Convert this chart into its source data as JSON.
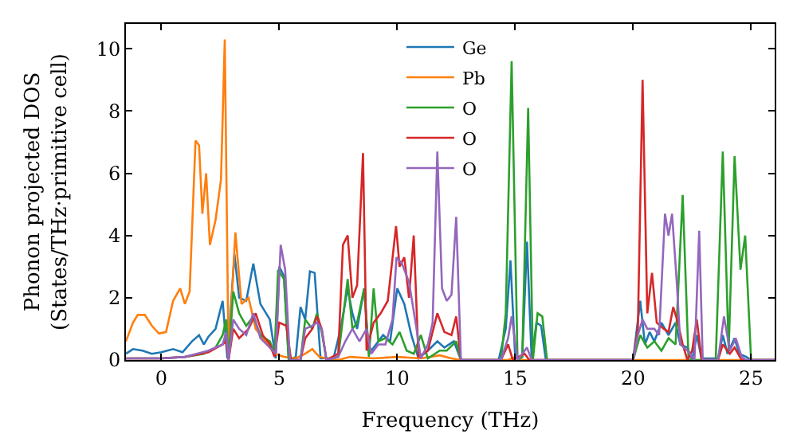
{
  "chart_data": {
    "type": "line",
    "xlabel": "Frequency (THz)",
    "ylabel": "Phonon projected DOS\n(States/THz·primitive cell)",
    "xlim": [
      -1.5,
      26
    ],
    "ylim": [
      0,
      10.8
    ],
    "xticks": [
      0,
      5,
      10,
      15,
      20,
      25
    ],
    "yticks": [
      0,
      2,
      4,
      6,
      8,
      10
    ],
    "grid": false,
    "legend": "top",
    "marker": "none",
    "line_style": "solid",
    "series": [
      {
        "name": "Ge",
        "color": "#1f77b4",
        "x": [
          -1.5,
          -1.2,
          -0.8,
          -0.4,
          0,
          0.5,
          0.9,
          1.3,
          1.6,
          1.8,
          2.0,
          2.3,
          2.6,
          2.8,
          3.1,
          3.3,
          3.6,
          3.9,
          4.2,
          4.6,
          4.85,
          5.0,
          5.2,
          5.4,
          5.7,
          5.9,
          6.1,
          6.3,
          6.5,
          6.75,
          7.3,
          7.6,
          7.9,
          8.1,
          8.3,
          8.6,
          8.8,
          9.1,
          9.4,
          9.7,
          10.0,
          10.3,
          10.6,
          10.9,
          11.3,
          11.7,
          12.0,
          12.4,
          12.7,
          14.3,
          14.6,
          14.8,
          15.0,
          15.3,
          15.5,
          15.7,
          15.9,
          16.1,
          16.3,
          20.0,
          20.3,
          20.5,
          20.7,
          20.9,
          21.2,
          21.5,
          21.8,
          22.0,
          22.3,
          22.5,
          22.7,
          22.9,
          23.6,
          23.8,
          24.0,
          24.3,
          24.5,
          24.8,
          25.0,
          26
        ],
        "values": [
          0.2,
          0.35,
          0.3,
          0.2,
          0.25,
          0.35,
          0.25,
          0.6,
          0.8,
          0.5,
          0.75,
          1.0,
          1.9,
          0.05,
          3.4,
          2.0,
          1.9,
          3.1,
          1.8,
          1.3,
          0.05,
          3.0,
          2.7,
          0.0,
          0.1,
          1.7,
          1.3,
          2.85,
          2.8,
          0.05,
          0.05,
          1.0,
          2.3,
          1.5,
          1.0,
          2.3,
          0.2,
          0.5,
          0.8,
          0.6,
          2.3,
          1.8,
          0.8,
          0.05,
          0.3,
          0.6,
          0.4,
          0.6,
          0.0,
          0.0,
          1.0,
          3.2,
          0.1,
          0.1,
          3.8,
          0.0,
          1.2,
          1.1,
          0.0,
          0.0,
          1.9,
          0.5,
          0.9,
          0.6,
          1.2,
          0.8,
          1.2,
          0.5,
          0.4,
          0.0,
          0.8,
          0.05,
          0.05,
          0.8,
          0.2,
          0.7,
          0.2,
          0.1,
          0.0,
          0.0
        ]
      },
      {
        "name": "Pb",
        "color": "#ff7f0e",
        "x": [
          -1.5,
          -1.2,
          -1.0,
          -0.7,
          -0.4,
          -0.1,
          0.2,
          0.5,
          0.8,
          1.0,
          1.2,
          1.45,
          1.6,
          1.74,
          1.9,
          2.06,
          2.3,
          2.53,
          2.69,
          2.85,
          3.14,
          3.4,
          3.7,
          4.0,
          4.4,
          4.8,
          5.2,
          5.7,
          6.1,
          6.4,
          6.7,
          7.0,
          7.5,
          8.0,
          9.0,
          10.0,
          11.0,
          11.8,
          12.3,
          12.7,
          14.7,
          15.0,
          15.3,
          20.0,
          26.0
        ],
        "values": [
          0.6,
          1.2,
          1.45,
          1.45,
          1.1,
          0.85,
          0.9,
          1.9,
          2.3,
          1.8,
          2.2,
          7.05,
          6.9,
          4.7,
          6.0,
          3.7,
          4.5,
          5.8,
          10.3,
          0.05,
          4.1,
          1.8,
          2.0,
          1.0,
          0.6,
          0.2,
          0.1,
          0.05,
          0.2,
          0.35,
          0.1,
          0.05,
          0.0,
          0.1,
          0.05,
          0.1,
          0.05,
          0.15,
          0.05,
          0.0,
          0.0,
          0.1,
          0.0,
          0.0,
          0.0
        ]
      },
      {
        "name": "O",
        "color": "#2ca02c",
        "x": [
          -1.5,
          0,
          1.0,
          1.8,
          2.3,
          2.6,
          2.75,
          2.85,
          3.05,
          3.3,
          3.6,
          3.9,
          4.2,
          4.6,
          4.8,
          4.95,
          5.2,
          5.4,
          5.9,
          6.1,
          6.4,
          6.6,
          6.8,
          7.0,
          7.5,
          7.9,
          8.1,
          8.3,
          8.6,
          8.8,
          9.0,
          9.2,
          9.5,
          9.8,
          10.1,
          10.4,
          10.7,
          11.0,
          11.3,
          11.8,
          12.1,
          12.5,
          12.7,
          14.4,
          14.6,
          14.85,
          15.1,
          15.3,
          15.55,
          15.75,
          15.95,
          16.15,
          16.35,
          20.0,
          20.3,
          20.6,
          20.9,
          21.2,
          21.5,
          21.8,
          22.1,
          22.35,
          23.5,
          23.8,
          24.05,
          24.3,
          24.55,
          24.75,
          25.0,
          26.0
        ],
        "values": [
          0.05,
          0.05,
          0.1,
          0.2,
          0.4,
          0.8,
          1.3,
          0.0,
          2.2,
          1.5,
          1.1,
          1.4,
          0.8,
          0.6,
          0.2,
          2.9,
          2.6,
          0.0,
          0.0,
          1.3,
          1.0,
          1.5,
          0.9,
          0.0,
          0.1,
          2.6,
          1.0,
          1.2,
          2.3,
          0.1,
          2.3,
          0.6,
          0.7,
          0.5,
          0.9,
          0.3,
          0.2,
          0.8,
          0.05,
          0.3,
          0.3,
          0.6,
          0.0,
          0.0,
          1.5,
          9.6,
          0.0,
          0.1,
          8.1,
          0.0,
          1.5,
          1.4,
          0.0,
          0.0,
          0.8,
          0.4,
          0.6,
          0.3,
          0.7,
          0.5,
          5.3,
          0.0,
          0.0,
          6.7,
          0.3,
          6.55,
          2.9,
          4.0,
          0.0,
          0.0
        ]
      },
      {
        "name": "O",
        "color": "#d62728",
        "x": [
          -1.5,
          0,
          1.0,
          2.0,
          2.6,
          2.75,
          2.85,
          3.05,
          3.3,
          3.7,
          4.0,
          4.3,
          4.6,
          4.8,
          5.0,
          5.3,
          5.5,
          5.9,
          6.1,
          6.4,
          6.6,
          6.8,
          7.0,
          7.5,
          7.7,
          7.9,
          8.1,
          8.3,
          8.55,
          8.7,
          9.0,
          9.3,
          9.6,
          9.95,
          10.1,
          10.3,
          10.5,
          10.7,
          10.9,
          11.3,
          11.7,
          12.0,
          12.3,
          12.5,
          12.7,
          14.4,
          14.7,
          14.9,
          15.4,
          15.6,
          20.0,
          20.2,
          20.4,
          20.6,
          20.8,
          21.0,
          21.3,
          21.5,
          21.7,
          21.9,
          22.1,
          22.3,
          22.5,
          22.7,
          22.9,
          23.6,
          23.8,
          24.1,
          24.3,
          24.6,
          26.0
        ],
        "values": [
          0.05,
          0.05,
          0.1,
          0.25,
          0.5,
          0.6,
          0.0,
          1.0,
          0.7,
          1.0,
          1.5,
          0.8,
          0.5,
          0.1,
          1.2,
          1.1,
          0.0,
          0.0,
          0.7,
          1.0,
          1.4,
          1.0,
          0.0,
          0.2,
          3.7,
          4.0,
          2.0,
          2.4,
          6.65,
          0.3,
          1.2,
          1.5,
          1.9,
          4.3,
          3.0,
          3.3,
          2.0,
          4.0,
          0.1,
          0.3,
          1.5,
          0.9,
          0.8,
          1.4,
          0.0,
          0.0,
          0.5,
          0.0,
          0.2,
          0.0,
          0.0,
          1.0,
          9.0,
          1.5,
          2.8,
          1.2,
          1.0,
          0.9,
          1.7,
          1.2,
          0.5,
          0.0,
          0.3,
          1.3,
          0.0,
          0.0,
          0.5,
          0.2,
          0.4,
          0.0,
          0.0
        ]
      },
      {
        "name": "O",
        "color": "#9467bd",
        "x": [
          -1.5,
          0,
          1.0,
          2.0,
          2.6,
          2.75,
          2.85,
          3.05,
          3.3,
          3.6,
          3.9,
          4.2,
          4.6,
          4.85,
          5.06,
          5.25,
          5.45,
          5.9,
          6.1,
          6.4,
          6.6,
          6.8,
          7.0,
          7.5,
          7.8,
          8.1,
          8.4,
          8.7,
          8.9,
          9.2,
          9.5,
          9.8,
          9.97,
          10.2,
          10.5,
          10.8,
          11.0,
          11.3,
          11.5,
          11.7,
          11.9,
          12.1,
          12.3,
          12.5,
          12.7,
          14.4,
          14.7,
          14.85,
          15.1,
          15.5,
          15.7,
          20.0,
          20.2,
          20.4,
          20.6,
          20.9,
          21.1,
          21.35,
          21.5,
          21.65,
          21.85,
          22.0,
          22.3,
          22.6,
          22.8,
          22.95,
          23.6,
          23.85,
          24.1,
          24.35,
          24.6,
          24.8,
          26.0
        ],
        "values": [
          0.05,
          0.05,
          0.1,
          0.3,
          0.5,
          0.9,
          0.0,
          1.3,
          1.0,
          0.8,
          1.5,
          0.7,
          0.4,
          0.2,
          3.7,
          2.9,
          0.0,
          0.0,
          1.0,
          1.1,
          1.2,
          1.0,
          0.0,
          0.1,
          0.6,
          1.0,
          0.6,
          1.0,
          0.2,
          0.5,
          0.5,
          1.3,
          3.3,
          3.1,
          2.5,
          1.1,
          0.05,
          0.5,
          1.2,
          6.7,
          2.3,
          1.9,
          2.1,
          4.6,
          0.0,
          0.0,
          0.7,
          1.4,
          0.0,
          0.4,
          0.0,
          0.0,
          0.8,
          1.3,
          1.0,
          1.0,
          0.8,
          4.7,
          4.0,
          4.7,
          2.5,
          0.5,
          0.3,
          0.0,
          4.15,
          0.0,
          0.0,
          1.4,
          0.3,
          0.7,
          0.1,
          0.0,
          0.0
        ]
      }
    ]
  }
}
